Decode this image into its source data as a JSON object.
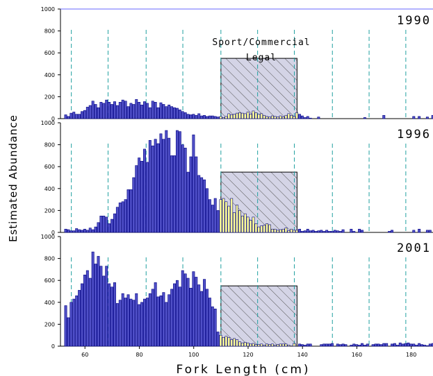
{
  "chart_data": {
    "type": "bar",
    "title": "",
    "xlabel": "Fork Length (cm)",
    "ylabel": "Estimated Abundance",
    "xlim": [
      51,
      188
    ],
    "ylim": [
      0,
      1000
    ],
    "x_ticks": [
      60,
      80,
      100,
      120,
      140,
      160,
      180
    ],
    "y_ticks": [
      0,
      200,
      400,
      600,
      800,
      1000
    ],
    "legal_range_label_line1": "Sport/Commercial",
    "legal_range_label_line2": "Legal",
    "legal_range": [
      110,
      138
    ],
    "age_boundaries": [
      55,
      68.5,
      82.5,
      96,
      110,
      123.5,
      137,
      151,
      164.5,
      178
    ],
    "grid": false,
    "legend": "none",
    "colors": {
      "sublegal_bar": "#5050c8",
      "legal_bar": "#ffff99",
      "bar_edge": "#000080",
      "age_line": "#20a0a0",
      "legal_box": "#d4d4e6",
      "top_rule": "#6666ff"
    },
    "bin_start": 53,
    "bin_width": 1,
    "panels": [
      {
        "year": "1990",
        "values": [
          35,
          20,
          50,
          60,
          40,
          40,
          65,
          75,
          105,
          120,
          160,
          130,
          100,
          150,
          140,
          170,
          150,
          130,
          155,
          120,
          150,
          170,
          160,
          110,
          140,
          130,
          175,
          150,
          125,
          155,
          140,
          100,
          160,
          150,
          100,
          145,
          130,
          110,
          125,
          110,
          100,
          95,
          80,
          65,
          55,
          40,
          35,
          40,
          30,
          45,
          25,
          30,
          20,
          25,
          25,
          20,
          15,
          20,
          10,
          20,
          45,
          35,
          40,
          50,
          55,
          50,
          45,
          60,
          40,
          70,
          55,
          40,
          45,
          30,
          20,
          15,
          25,
          20,
          15,
          25,
          15,
          30,
          45,
          30,
          20,
          55,
          40,
          25,
          10,
          20,
          5,
          0,
          0,
          15,
          0,
          0,
          0,
          0,
          0,
          0,
          0,
          0,
          0,
          0,
          0,
          0,
          0,
          0,
          0,
          0,
          10,
          0,
          0,
          0,
          0,
          0,
          0,
          30,
          0,
          0,
          0,
          0,
          0,
          0,
          0,
          0,
          0,
          0,
          20,
          0,
          20,
          0,
          0,
          15,
          0,
          30,
          0,
          20,
          35,
          40,
          20
        ]
      },
      {
        "year": "1996",
        "values": [
          30,
          25,
          15,
          15,
          35,
          25,
          20,
          30,
          20,
          40,
          25,
          50,
          90,
          150,
          150,
          140,
          80,
          120,
          170,
          230,
          270,
          280,
          300,
          390,
          390,
          500,
          610,
          680,
          650,
          760,
          640,
          840,
          790,
          850,
          810,
          900,
          850,
          930,
          860,
          700,
          700,
          930,
          920,
          800,
          770,
          550,
          690,
          890,
          690,
          520,
          500,
          480,
          400,
          300,
          250,
          310,
          200,
          300,
          310,
          280,
          240,
          310,
          180,
          250,
          200,
          150,
          170,
          140,
          110,
          140,
          80,
          50,
          60,
          65,
          80,
          70,
          30,
          30,
          20,
          25,
          30,
          40,
          15,
          30,
          20,
          20,
          30,
          10,
          15,
          30,
          15,
          20,
          10,
          15,
          20,
          10,
          20,
          10,
          10,
          20,
          15,
          10,
          25,
          0,
          0,
          30,
          10,
          0,
          30,
          20,
          0,
          0,
          0,
          0,
          0,
          0,
          0,
          0,
          0,
          10,
          20,
          0,
          0,
          0,
          0,
          0,
          0,
          0,
          20,
          0,
          30,
          0,
          0,
          20,
          20,
          0,
          0,
          0,
          20,
          0,
          30
        ]
      },
      {
        "year": "2001",
        "values": [
          370,
          260,
          400,
          430,
          460,
          510,
          570,
          650,
          690,
          620,
          860,
          750,
          820,
          730,
          640,
          730,
          570,
          540,
          580,
          390,
          420,
          480,
          440,
          470,
          430,
          420,
          480,
          380,
          400,
          430,
          440,
          480,
          520,
          580,
          450,
          460,
          490,
          400,
          470,
          520,
          570,
          600,
          540,
          690,
          660,
          620,
          530,
          680,
          630,
          560,
          500,
          610,
          520,
          440,
          360,
          340,
          130,
          100,
          80,
          90,
          80,
          60,
          70,
          60,
          40,
          30,
          35,
          30,
          20,
          25,
          15,
          15,
          20,
          10,
          20,
          15,
          20,
          10,
          15,
          20,
          20,
          20,
          10,
          0,
          25,
          0,
          20,
          15,
          10,
          20,
          20,
          0,
          0,
          0,
          15,
          20,
          20,
          20,
          25,
          0,
          20,
          15,
          20,
          15,
          0,
          10,
          20,
          15,
          10,
          25,
          10,
          20,
          0,
          15,
          20,
          20,
          15,
          25,
          25,
          0,
          20,
          25,
          10,
          30,
          20,
          25,
          30,
          20,
          20,
          10,
          25,
          15,
          10,
          5,
          20,
          25,
          10,
          15,
          20,
          10,
          20
        ]
      }
    ]
  }
}
